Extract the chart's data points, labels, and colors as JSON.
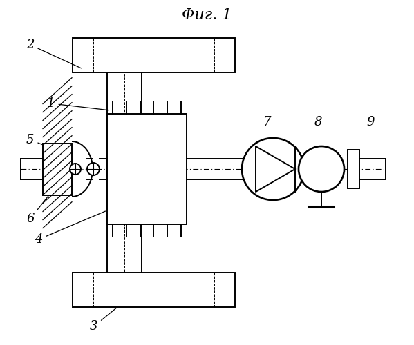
{
  "bg_color": "#ffffff",
  "line_color": "#000000",
  "title": "Фиг. 1",
  "title_fontsize": 16,
  "figsize": [
    5.99,
    5.0
  ],
  "dpi": 100
}
